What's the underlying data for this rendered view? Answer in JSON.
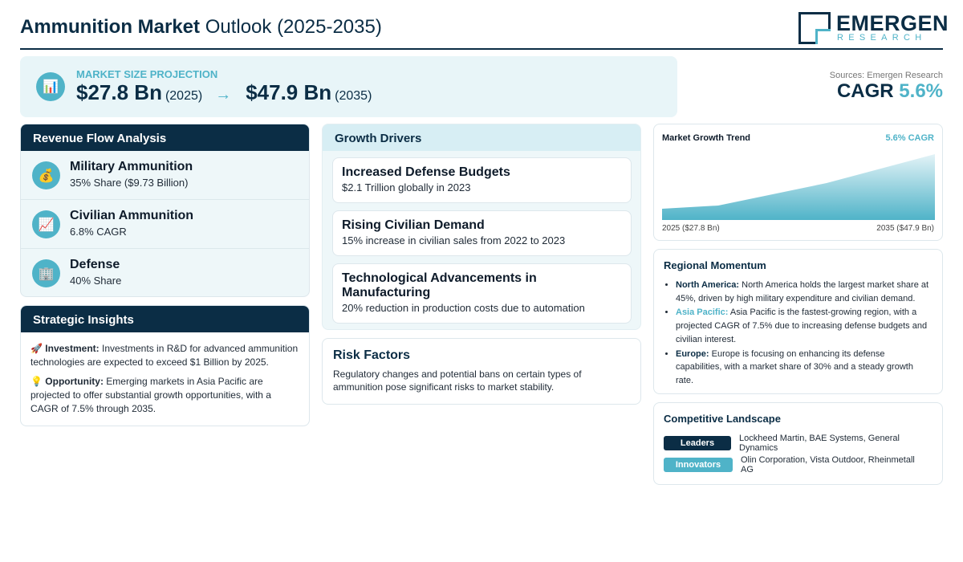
{
  "header": {
    "title_bold": "Ammunition Market",
    "title_rest": "Outlook (2025-2035)",
    "logo_name": "EMERGEN",
    "logo_sub": "RESEARCH"
  },
  "projection": {
    "label": "MARKET SIZE PROJECTION",
    "icon": "bar-chart-icon",
    "icon_glyph": "📊",
    "start_value": "$27.8 Bn",
    "start_year": "(2025)",
    "arrow": "→",
    "end_value": "$47.9 Bn",
    "end_year": "(2035)"
  },
  "sources": "Sources: Emergen Research",
  "cagr": {
    "label": "CAGR",
    "value": "5.6%"
  },
  "revenue": {
    "heading": "Revenue Flow Analysis",
    "items": [
      {
        "icon": "money-bag-icon",
        "glyph": "💰",
        "title": "Military Ammunition",
        "sub": "35% Share ($9.73 Billion)"
      },
      {
        "icon": "trend-chart-icon",
        "glyph": "📈",
        "title": "Civilian Ammunition",
        "sub": "6.8% CAGR"
      },
      {
        "icon": "building-icon",
        "glyph": "🏢",
        "title": "Defense",
        "sub": "40% Share"
      }
    ]
  },
  "insights": {
    "heading": "Strategic Insights",
    "investment": {
      "glyph": "🚀",
      "label": "Investment:",
      "text": "Investments in R&D for advanced ammunition technologies are expected to exceed $1 Billion by 2025."
    },
    "opportunity": {
      "glyph": "💡",
      "label": "Opportunity:",
      "text": "Emerging markets in Asia Pacific are projected to offer substantial growth opportunities, with a CAGR of 7.5% through 2035."
    }
  },
  "drivers": {
    "heading": "Growth Drivers",
    "items": [
      {
        "title": "Increased Defense Budgets",
        "sub": "$2.1 Trillion globally in 2023"
      },
      {
        "title": "Rising Civilian Demand",
        "sub": "15% increase in civilian sales from 2022 to 2023"
      },
      {
        "title": "Technological Advancements in Manufacturing",
        "sub": "20% reduction in production costs due to automation"
      }
    ]
  },
  "risk": {
    "heading": "Risk Factors",
    "text": "Regulatory changes and potential bans on certain types of ammunition pose significant risks to market stability."
  },
  "trend": {
    "title": "Market Growth Trend",
    "cagr": "5.6% CAGR",
    "start_label": "2025 ($27.8 Bn)",
    "end_label": "2035 ($47.9 Bn)",
    "colors": {
      "fill_top": "#e3f3f7",
      "fill_bottom": "#4fb3c8"
    }
  },
  "regional": {
    "heading": "Regional Momentum",
    "items": [
      {
        "label": "North America:",
        "text": "North America holds the largest market share at 45%, driven by high military expenditure and civilian demand.",
        "accent": "#0b2d45"
      },
      {
        "label": "Asia Pacific:",
        "text": "Asia Pacific is the fastest-growing region, with a projected CAGR of 7.5% due to increasing defense budgets and civilian interest.",
        "accent": "#4fb3c8"
      },
      {
        "label": "Europe:",
        "text": "Europe is focusing on enhancing its defense capabilities, with a market share of 30% and a steady growth rate.",
        "accent": "#0b2d45"
      }
    ]
  },
  "competitive": {
    "heading": "Competitive Landscape",
    "leaders_label": "Leaders",
    "leaders_text": "Lockheed Martin, BAE Systems, General Dynamics",
    "innovators_label": "Innovators",
    "innovators_text": "Olin Corporation, Vista Outdoor, Rheinmetall AG"
  },
  "colors": {
    "navy": "#0b2d45",
    "teal": "#4fb3c8",
    "panel": "#eef7f9"
  }
}
